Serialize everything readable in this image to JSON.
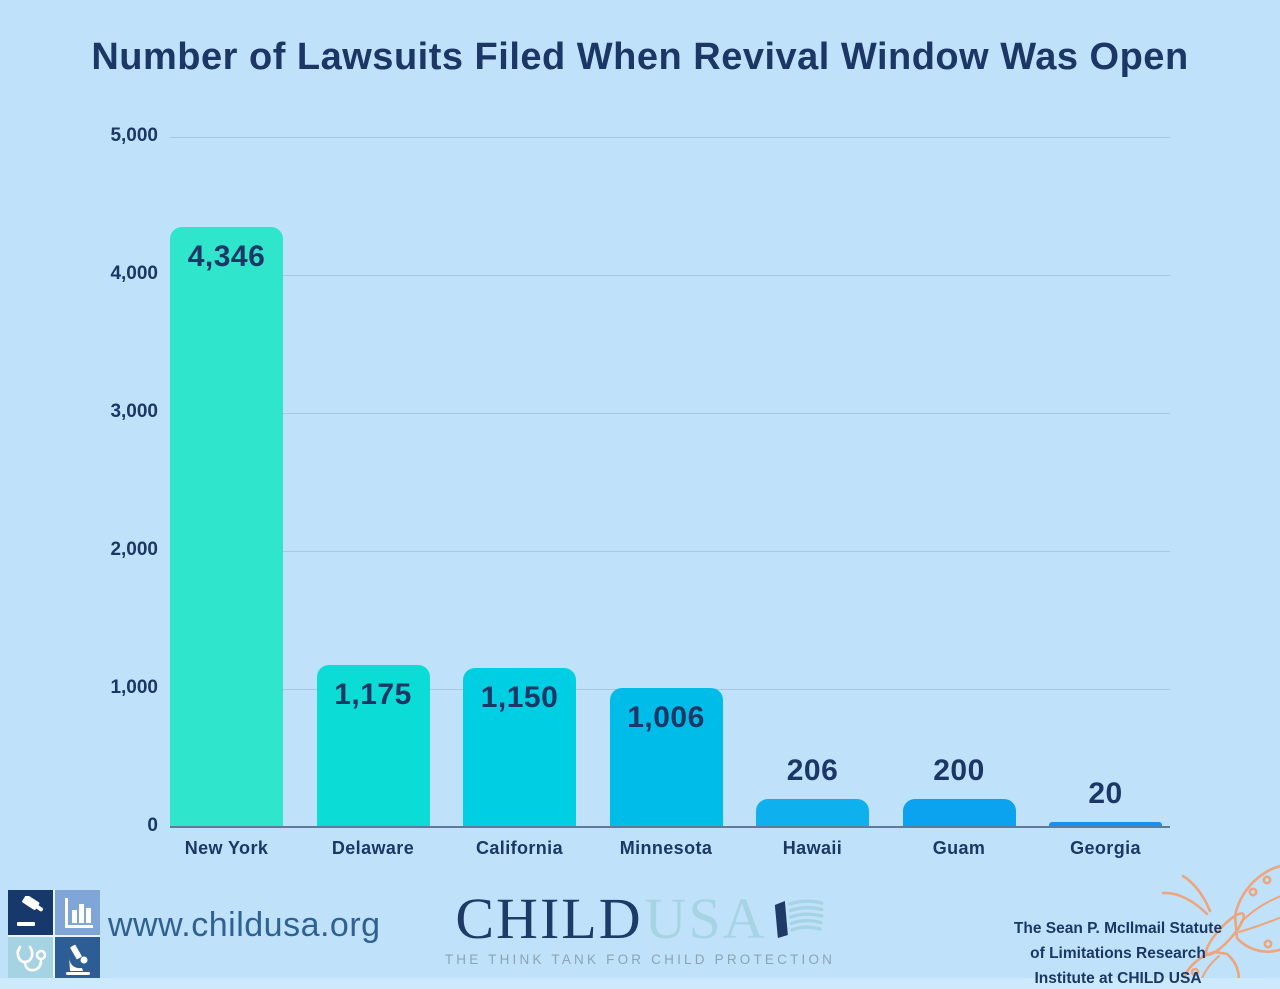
{
  "title": "Number of Lawsuits Filed When Revival Window Was Open",
  "chart_data": {
    "type": "bar",
    "title": "Number of Lawsuits Filed When Revival Window Was Open",
    "categories": [
      "New York",
      "Delaware",
      "California",
      "Minnesota",
      "Hawaii",
      "Guam",
      "Georgia"
    ],
    "values": [
      4346,
      1175,
      1150,
      1006,
      206,
      200,
      20
    ],
    "value_labels": [
      "4,346",
      "1,175",
      "1,150",
      "1,006",
      "206",
      "200",
      "20"
    ],
    "bar_colors": [
      "#2fe5cb",
      "#0bdcd6",
      "#00cfe3",
      "#00bce9",
      "#0eb0ee",
      "#0ba2f0",
      "#1491f1"
    ],
    "xlabel": "",
    "ylabel": "",
    "ylim": [
      0,
      5000
    ],
    "ytick_values": [
      5000,
      4000,
      3000,
      2000,
      1000,
      0
    ],
    "ytick_labels": [
      "5,000",
      "4,000",
      "3,000",
      "2,000",
      "1,000",
      "0"
    ],
    "grid": "horizontal",
    "legend": "none",
    "label_color": "#1c3766",
    "background": "#bfe2fa"
  },
  "footer": {
    "website": "www.childusa.org",
    "wordmark": {
      "child": "CHILD",
      "usa": "USA",
      "tagline": "THE THINK TANK FOR CHILD PROTECTION"
    },
    "institute": {
      "line1": "The Sean P. McIlmail Statute",
      "line2": "of Limitations Research",
      "line3": "Institute at CHILD USA"
    },
    "icons": {
      "logo_quadrants": [
        "gavel-icon",
        "bar-chart-icon",
        "stethoscope-icon",
        "microscope-icon"
      ],
      "flag": "childusa-flag-icon",
      "butterfly": "butterfly-icon"
    },
    "colors": {
      "butterfly": "#eda57e",
      "wordmark_navy": "#1e3a66",
      "wordmark_lightblue": "#a7d4e4",
      "website_blue": "#2f6193"
    }
  }
}
